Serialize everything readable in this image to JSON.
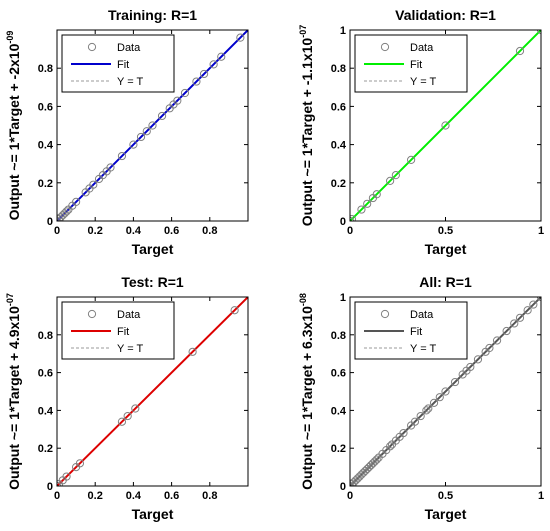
{
  "chart_data": [
    {
      "type": "scatter",
      "title": "Training: R=1",
      "xlabel": "Target",
      "ylabel": "Output ~= 1*Target + -2x10",
      "ylabel_exponent": "-09",
      "xlim": [
        0,
        1
      ],
      "ylim": [
        0,
        1
      ],
      "xticks": [
        "0",
        "0.2",
        "0.4",
        "0.6",
        "0.8"
      ],
      "yticks": [
        "0",
        "0.2",
        "0.4",
        "0.6",
        "0.8"
      ],
      "fit_color": "#0000cc",
      "legend": [
        "Data",
        "Fit",
        "Y = T"
      ],
      "legend_position": "top-left",
      "fit": {
        "slope": 1,
        "intercept": 0
      },
      "points": [
        [
          0.0,
          0.0
        ],
        [
          0.01,
          0.01
        ],
        [
          0.02,
          0.02
        ],
        [
          0.03,
          0.03
        ],
        [
          0.04,
          0.04
        ],
        [
          0.05,
          0.05
        ],
        [
          0.06,
          0.06
        ],
        [
          0.08,
          0.08
        ],
        [
          0.1,
          0.1
        ],
        [
          0.15,
          0.15
        ],
        [
          0.17,
          0.17
        ],
        [
          0.19,
          0.19
        ],
        [
          0.22,
          0.22
        ],
        [
          0.24,
          0.24
        ],
        [
          0.26,
          0.26
        ],
        [
          0.28,
          0.28
        ],
        [
          0.34,
          0.34
        ],
        [
          0.4,
          0.4
        ],
        [
          0.44,
          0.44
        ],
        [
          0.47,
          0.47
        ],
        [
          0.5,
          0.5
        ],
        [
          0.55,
          0.55
        ],
        [
          0.59,
          0.59
        ],
        [
          0.61,
          0.61
        ],
        [
          0.63,
          0.63
        ],
        [
          0.67,
          0.67
        ],
        [
          0.73,
          0.73
        ],
        [
          0.77,
          0.77
        ],
        [
          0.82,
          0.82
        ],
        [
          0.86,
          0.86
        ],
        [
          0.96,
          0.96
        ]
      ]
    },
    {
      "type": "scatter",
      "title": "Validation: R=1",
      "xlabel": "Target",
      "ylabel": "Output ~= 1*Target + -1.1x10",
      "ylabel_exponent": "-07",
      "xlim": [
        0,
        1
      ],
      "ylim": [
        0,
        1
      ],
      "xticks": [
        "0",
        "0.5",
        "1"
      ],
      "yticks": [
        "0",
        "0.2",
        "0.4",
        "0.6",
        "0.8",
        "1"
      ],
      "fit_color": "#00ee00",
      "legend": [
        "Data",
        "Fit",
        "Y = T"
      ],
      "legend_position": "top-left",
      "fit": {
        "slope": 1,
        "intercept": 0
      },
      "points": [
        [
          0.0,
          0.0
        ],
        [
          0.01,
          0.01
        ],
        [
          0.06,
          0.06
        ],
        [
          0.09,
          0.09
        ],
        [
          0.12,
          0.12
        ],
        [
          0.14,
          0.14
        ],
        [
          0.21,
          0.21
        ],
        [
          0.24,
          0.24
        ],
        [
          0.32,
          0.32
        ],
        [
          0.5,
          0.5
        ],
        [
          0.89,
          0.89
        ],
        [
          1.0,
          1.0
        ]
      ]
    },
    {
      "type": "scatter",
      "title": "Test: R=1",
      "xlabel": "Target",
      "ylabel": "Output ~= 1*Target + 4.9x10",
      "ylabel_exponent": "-07",
      "xlim": [
        0,
        1
      ],
      "ylim": [
        0,
        1
      ],
      "xticks": [
        "0",
        "0.2",
        "0.4",
        "0.6",
        "0.8"
      ],
      "yticks": [
        "0",
        "0.2",
        "0.4",
        "0.6",
        "0.8"
      ],
      "fit_color": "#dd0000",
      "legend": [
        "Data",
        "Fit",
        "Y = T"
      ],
      "legend_position": "top-left",
      "fit": {
        "slope": 1,
        "intercept": 0
      },
      "points": [
        [
          0.0,
          0.0
        ],
        [
          0.01,
          0.01
        ],
        [
          0.03,
          0.03
        ],
        [
          0.05,
          0.05
        ],
        [
          0.1,
          0.1
        ],
        [
          0.12,
          0.12
        ],
        [
          0.34,
          0.34
        ],
        [
          0.37,
          0.37
        ],
        [
          0.41,
          0.41
        ],
        [
          0.71,
          0.71
        ],
        [
          0.93,
          0.93
        ]
      ]
    },
    {
      "type": "scatter",
      "title": "All: R=1",
      "xlabel": "Target",
      "ylabel": "Output ~= 1*Target + 6.3x10",
      "ylabel_exponent": "-08",
      "xlim": [
        0,
        1
      ],
      "ylim": [
        0,
        1
      ],
      "xticks": [
        "0",
        "0.5",
        "1"
      ],
      "yticks": [
        "0",
        "0.2",
        "0.4",
        "0.6",
        "0.8",
        "1"
      ],
      "fit_color": "#555555",
      "legend": [
        "Data",
        "Fit",
        "Y = T"
      ],
      "legend_position": "top-left",
      "fit": {
        "slope": 1,
        "intercept": 0
      },
      "points": [
        [
          0.0,
          0.0
        ],
        [
          0.01,
          0.01
        ],
        [
          0.02,
          0.02
        ],
        [
          0.03,
          0.03
        ],
        [
          0.04,
          0.04
        ],
        [
          0.05,
          0.05
        ],
        [
          0.06,
          0.06
        ],
        [
          0.07,
          0.07
        ],
        [
          0.08,
          0.08
        ],
        [
          0.09,
          0.09
        ],
        [
          0.1,
          0.1
        ],
        [
          0.11,
          0.11
        ],
        [
          0.12,
          0.12
        ],
        [
          0.13,
          0.13
        ],
        [
          0.14,
          0.14
        ],
        [
          0.15,
          0.15
        ],
        [
          0.17,
          0.17
        ],
        [
          0.19,
          0.19
        ],
        [
          0.21,
          0.21
        ],
        [
          0.22,
          0.22
        ],
        [
          0.24,
          0.24
        ],
        [
          0.26,
          0.26
        ],
        [
          0.28,
          0.28
        ],
        [
          0.32,
          0.32
        ],
        [
          0.34,
          0.34
        ],
        [
          0.37,
          0.37
        ],
        [
          0.4,
          0.4
        ],
        [
          0.41,
          0.41
        ],
        [
          0.44,
          0.44
        ],
        [
          0.47,
          0.47
        ],
        [
          0.5,
          0.5
        ],
        [
          0.55,
          0.55
        ],
        [
          0.59,
          0.59
        ],
        [
          0.61,
          0.61
        ],
        [
          0.63,
          0.63
        ],
        [
          0.67,
          0.67
        ],
        [
          0.71,
          0.71
        ],
        [
          0.73,
          0.73
        ],
        [
          0.77,
          0.77
        ],
        [
          0.82,
          0.82
        ],
        [
          0.86,
          0.86
        ],
        [
          0.89,
          0.89
        ],
        [
          0.93,
          0.93
        ],
        [
          0.96,
          0.96
        ],
        [
          1.0,
          1.0
        ]
      ]
    }
  ]
}
